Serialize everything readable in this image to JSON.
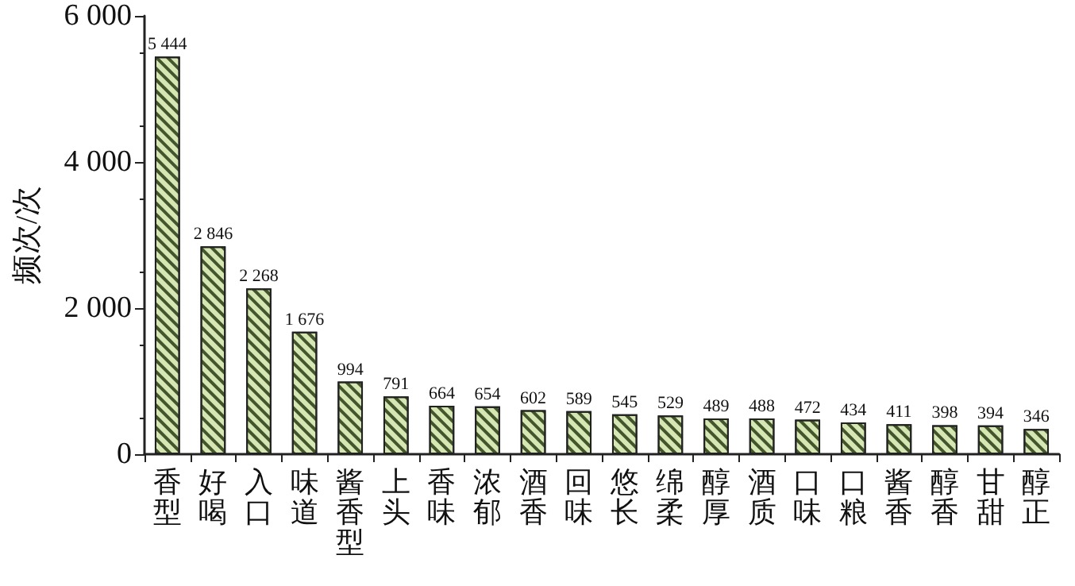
{
  "chart_data": {
    "type": "bar",
    "ylabel": "频次/次",
    "categories": [
      "香型",
      "好喝",
      "入口",
      "味道",
      "酱香型",
      "上头",
      "香味",
      "浓郁",
      "酒香",
      "回味",
      "悠长",
      "绵柔",
      "醇厚",
      "酒质",
      "口味",
      "口粮",
      "酱香",
      "醇香",
      "甘甜",
      "醇正"
    ],
    "values": [
      5444,
      2846,
      2268,
      1676,
      994,
      791,
      664,
      654,
      602,
      589,
      545,
      529,
      489,
      488,
      472,
      434,
      411,
      398,
      394,
      346
    ],
    "value_labels": [
      "5 444",
      "2 846",
      "2 268",
      "1 676",
      "994",
      "791",
      "664",
      "654",
      "602",
      "589",
      "545",
      "529",
      "489",
      "488",
      "472",
      "434",
      "411",
      "398",
      "394",
      "346"
    ],
    "color": "#d6e7b4",
    "ylim": [
      0,
      6000
    ],
    "yticks": [
      {
        "value": 0,
        "label": "0"
      },
      {
        "value": 2000,
        "label": "2 000"
      },
      {
        "value": 4000,
        "label": "4 000"
      },
      {
        "value": 6000,
        "label": "6 000"
      }
    ]
  }
}
